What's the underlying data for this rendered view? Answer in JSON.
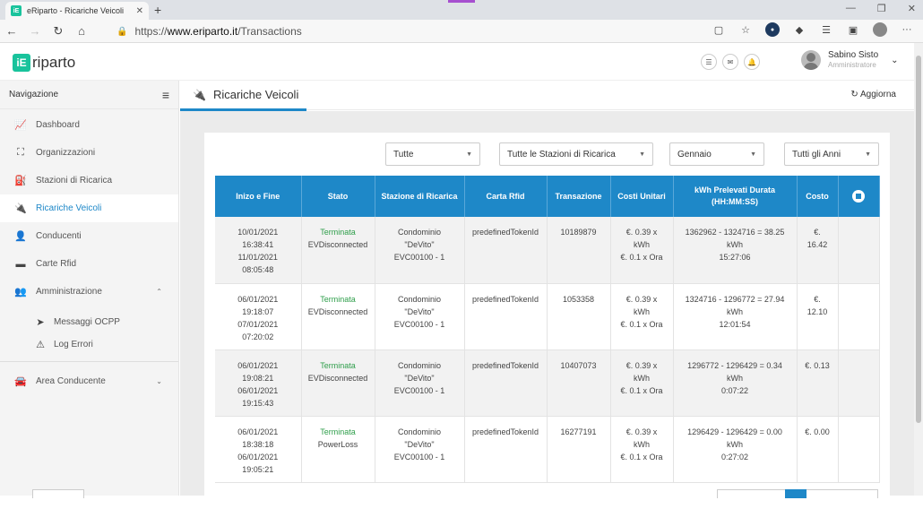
{
  "browser": {
    "tab_title": "eRiparto - Ricariche Veicoli",
    "url_prefix": "https://",
    "url_host": "www.eriparto.it",
    "url_path": "/Transactions"
  },
  "header": {
    "logo_text": "riparto",
    "user_name": "Sabino Sisto",
    "user_role": "Amministratore"
  },
  "sidebar": {
    "title": "Navigazione",
    "items": [
      {
        "label": "Dashboard",
        "icon": "chart-line-icon"
      },
      {
        "label": "Organizzazioni",
        "icon": "sitemap-icon"
      },
      {
        "label": "Stazioni di Ricarica",
        "icon": "charging-station-icon"
      },
      {
        "label": "Ricariche Veicoli",
        "icon": "plug-icon",
        "active": true
      },
      {
        "label": "Conducenti",
        "icon": "user-icon"
      },
      {
        "label": "Carte Rfid",
        "icon": "credit-card-icon"
      },
      {
        "label": "Amministrazione",
        "icon": "users-cog-icon"
      }
    ],
    "subitems": [
      {
        "label": "Messaggi OCPP",
        "icon": "paper-plane-icon"
      },
      {
        "label": "Log Errori",
        "icon": "warning-icon"
      }
    ],
    "bottom_item": {
      "label": "Area Conducente",
      "icon": "car-icon"
    }
  },
  "main": {
    "title": "Ricariche Veicoli",
    "refresh_label": "Aggiorna",
    "filters": {
      "status": "Tutte",
      "stations": "Tutte le Stazioni di Ricarica",
      "month": "Gennaio",
      "year": "Tutti gli Anni"
    },
    "table": {
      "headers": [
        "Inizo e Fine",
        "Stato",
        "Stazione di Ricarica",
        "Carta Rfid",
        "Transazione",
        "Costi Unitari",
        "kWh Prelevati Durata (HH:MM:SS)",
        "Costo"
      ],
      "rows": [
        {
          "start_date": "10/01/2021",
          "start_time": "16:38:41",
          "end_date": "11/01/2021",
          "end_time": "08:05:48",
          "status": "Terminata",
          "reason": "EVDisconnected",
          "station1": "Condominio",
          "station2": "\"DeVito\"",
          "station3": "EVC00100 - 1",
          "rfid": "predefinedTokenId",
          "transaction": "10189879",
          "cost1": "€. 0.39 x",
          "cost2": "kWh",
          "cost3": "€. 0.1 x Ora",
          "kwh1": "1362962 - 1324716 = 38.25",
          "kwh2": "kWh",
          "duration": "15:27:06",
          "total1": "€.",
          "total2": "16.42"
        },
        {
          "start_date": "06/01/2021",
          "start_time": "19:18:07",
          "end_date": "07/01/2021",
          "end_time": "07:20:02",
          "status": "Terminata",
          "reason": "EVDisconnected",
          "station1": "Condominio",
          "station2": "\"DeVito\"",
          "station3": "EVC00100 - 1",
          "rfid": "predefinedTokenId",
          "transaction": "1053358",
          "cost1": "€. 0.39 x",
          "cost2": "kWh",
          "cost3": "€. 0.1 x Ora",
          "kwh1": "1324716 - 1296772 = 27.94",
          "kwh2": "kWh",
          "duration": "12:01:54",
          "total1": "€.",
          "total2": "12.10"
        },
        {
          "start_date": "06/01/2021",
          "start_time": "19:08:21",
          "end_date": "06/01/2021",
          "end_time": "19:15:43",
          "status": "Terminata",
          "reason": "EVDisconnected",
          "station1": "Condominio",
          "station2": "\"DeVito\"",
          "station3": "EVC00100 - 1",
          "rfid": "predefinedTokenId",
          "transaction": "10407073",
          "cost1": "€. 0.39 x",
          "cost2": "kWh",
          "cost3": "€. 0.1 x Ora",
          "kwh1": "1296772 - 1296429 = 0.34",
          "kwh2": "kWh",
          "duration": "0:07:22",
          "total1": "€. 0.13",
          "total2": ""
        },
        {
          "start_date": "06/01/2021",
          "start_time": "18:38:18",
          "end_date": "06/01/2021",
          "end_time": "19:05:21",
          "status": "Terminata",
          "reason": "PowerLoss",
          "station1": "Condominio",
          "station2": "\"DeVito\"",
          "station3": "EVC00100 - 1",
          "rfid": "predefinedTokenId",
          "transaction": "16277191",
          "cost1": "€. 0.39 x",
          "cost2": "kWh",
          "cost3": "€. 0.1 x Ora",
          "kwh1": "1296429 - 1296429 = 0.00",
          "kwh2": "kWh",
          "duration": "0:27:02",
          "total1": "€. 0.00",
          "total2": ""
        }
      ]
    }
  },
  "colors": {
    "accent": "#1e88c8",
    "brand": "#19c39c",
    "status_ok": "#2e9e4a"
  }
}
